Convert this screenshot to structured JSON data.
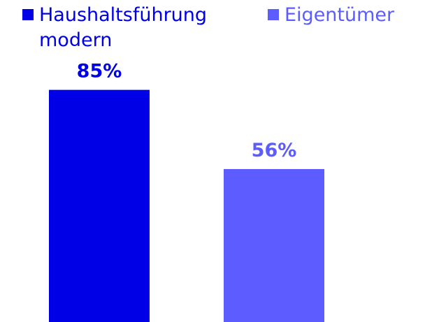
{
  "chart_data": {
    "type": "bar",
    "series": [
      {
        "name": "Haushaltsführung modern",
        "color": "#0000e6",
        "values": [
          85
        ],
        "value_labels": [
          "85%"
        ]
      },
      {
        "name": "Eigentümer",
        "color": "#5c5cff",
        "values": [
          56
        ],
        "value_labels": [
          "56%"
        ]
      }
    ]
  }
}
